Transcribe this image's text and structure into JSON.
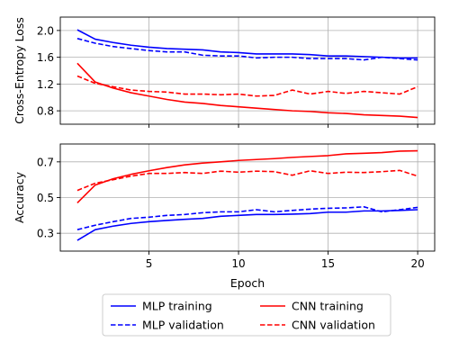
{
  "colors": {
    "mlp": "#0000ff",
    "cnn": "#ff0000",
    "grid": "#b0b0b0",
    "axes": "#000000"
  },
  "legend": {
    "placement": "bottom-center",
    "entries": [
      {
        "label": "MLP training",
        "color": "#0000ff",
        "dash": "solid"
      },
      {
        "label": "MLP validation",
        "color": "#0000ff",
        "dash": "dashed"
      },
      {
        "label": "CNN training",
        "color": "#ff0000",
        "dash": "solid"
      },
      {
        "label": "CNN validation",
        "color": "#ff0000",
        "dash": "dashed"
      }
    ]
  },
  "chart_data": [
    {
      "type": "line",
      "xlabel": "",
      "ylabel": "Cross-Entropy Loss",
      "grid": true,
      "xlim": [
        0.05,
        20.95
      ],
      "ylim": [
        0.6,
        2.2
      ],
      "xticks": [
        5,
        10,
        15,
        20
      ],
      "yticks": [
        0.8,
        1.2,
        1.6,
        2.0
      ],
      "ytick_labels": [
        "0.8",
        "1.2",
        "1.6",
        "2.0"
      ],
      "show_xtick_labels": false,
      "x": [
        1,
        2,
        3,
        4,
        5,
        6,
        7,
        8,
        9,
        10,
        11,
        12,
        13,
        14,
        15,
        16,
        17,
        18,
        19,
        20
      ],
      "series": [
        {
          "name": "MLP training",
          "color": "#0000ff",
          "dash": "solid",
          "values": [
            2.01,
            1.87,
            1.82,
            1.78,
            1.75,
            1.73,
            1.72,
            1.71,
            1.68,
            1.67,
            1.65,
            1.65,
            1.65,
            1.64,
            1.62,
            1.62,
            1.61,
            1.6,
            1.59,
            1.59
          ]
        },
        {
          "name": "MLP validation",
          "color": "#0000ff",
          "dash": "dashed",
          "values": [
            1.88,
            1.81,
            1.76,
            1.73,
            1.7,
            1.68,
            1.68,
            1.63,
            1.62,
            1.62,
            1.59,
            1.6,
            1.6,
            1.58,
            1.58,
            1.58,
            1.56,
            1.6,
            1.58,
            1.56
          ]
        },
        {
          "name": "CNN training",
          "color": "#ff0000",
          "dash": "solid",
          "values": [
            1.51,
            1.23,
            1.14,
            1.07,
            1.02,
            0.97,
            0.93,
            0.91,
            0.88,
            0.86,
            0.84,
            0.82,
            0.8,
            0.79,
            0.77,
            0.76,
            0.74,
            0.73,
            0.72,
            0.7
          ]
        },
        {
          "name": "CNN validation",
          "color": "#ff0000",
          "dash": "dashed",
          "values": [
            1.32,
            1.21,
            1.16,
            1.11,
            1.09,
            1.08,
            1.05,
            1.05,
            1.04,
            1.05,
            1.02,
            1.03,
            1.11,
            1.05,
            1.09,
            1.06,
            1.09,
            1.07,
            1.05,
            1.16
          ]
        }
      ]
    },
    {
      "type": "line",
      "xlabel": "Epoch",
      "ylabel": "Accuracy",
      "grid": true,
      "xlim": [
        0.05,
        20.95
      ],
      "ylim": [
        0.2,
        0.8
      ],
      "xticks": [
        5,
        10,
        15,
        20
      ],
      "xtick_labels": [
        "5",
        "10",
        "15",
        "20"
      ],
      "yticks": [
        0.3,
        0.5,
        0.7
      ],
      "ytick_labels": [
        "0.3",
        "0.5",
        "0.7"
      ],
      "show_xtick_labels": true,
      "x": [
        1,
        2,
        3,
        4,
        5,
        6,
        7,
        8,
        9,
        10,
        11,
        12,
        13,
        14,
        15,
        16,
        17,
        18,
        19,
        20
      ],
      "series": [
        {
          "name": "MLP training",
          "color": "#0000ff",
          "dash": "solid",
          "values": [
            0.26,
            0.32,
            0.34,
            0.355,
            0.365,
            0.372,
            0.378,
            0.383,
            0.395,
            0.4,
            0.405,
            0.405,
            0.407,
            0.41,
            0.418,
            0.418,
            0.425,
            0.425,
            0.428,
            0.432
          ]
        },
        {
          "name": "MLP validation",
          "color": "#0000ff",
          "dash": "dashed",
          "values": [
            0.32,
            0.345,
            0.365,
            0.383,
            0.39,
            0.4,
            0.405,
            0.415,
            0.42,
            0.42,
            0.432,
            0.42,
            0.428,
            0.435,
            0.44,
            0.442,
            0.448,
            0.42,
            0.432,
            0.445
          ]
        },
        {
          "name": "CNN training",
          "color": "#ff0000",
          "dash": "solid",
          "values": [
            0.47,
            0.57,
            0.605,
            0.63,
            0.65,
            0.668,
            0.683,
            0.693,
            0.7,
            0.708,
            0.713,
            0.718,
            0.725,
            0.73,
            0.735,
            0.745,
            0.748,
            0.752,
            0.76,
            0.762
          ]
        },
        {
          "name": "CNN validation",
          "color": "#ff0000",
          "dash": "dashed",
          "values": [
            0.54,
            0.58,
            0.6,
            0.62,
            0.635,
            0.635,
            0.64,
            0.635,
            0.648,
            0.642,
            0.648,
            0.645,
            0.625,
            0.65,
            0.635,
            0.642,
            0.64,
            0.645,
            0.652,
            0.62
          ]
        }
      ]
    }
  ]
}
